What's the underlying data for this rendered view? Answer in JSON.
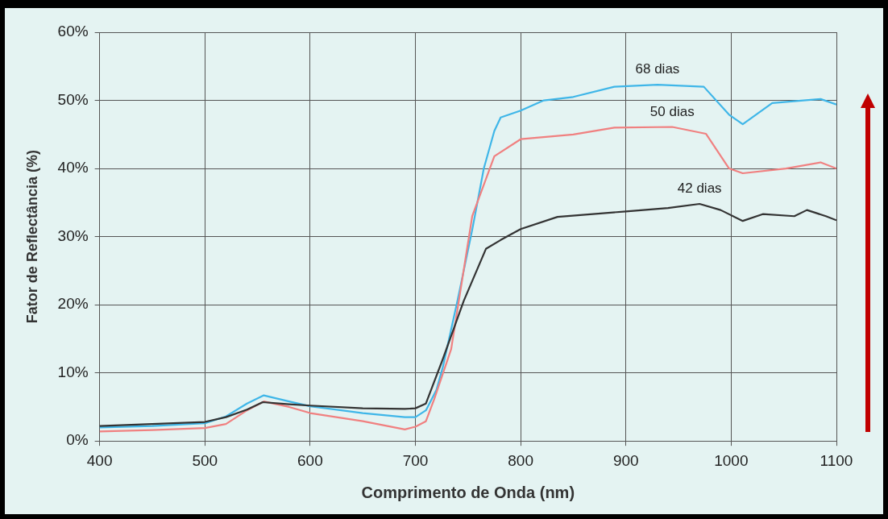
{
  "chart_data": {
    "type": "line",
    "xlabel": "Comprimento de Onda (nm)",
    "ylabel": "Fator de Reflectância (%)",
    "xlim": [
      400,
      1100
    ],
    "xticks": [
      400,
      500,
      600,
      700,
      800,
      900,
      1000,
      1100
    ],
    "ylim": [
      0,
      60
    ],
    "yticks": [
      {
        "value": 0,
        "label": "0%"
      },
      {
        "value": 10,
        "label": "10%"
      },
      {
        "value": 20,
        "label": "20%"
      },
      {
        "value": 30,
        "label": "30%"
      },
      {
        "value": 40,
        "label": "40%"
      },
      {
        "value": 50,
        "label": "50%"
      },
      {
        "value": 60,
        "label": "60%"
      }
    ],
    "grid": true,
    "legend": false,
    "marker": "none",
    "line_style": "solid",
    "series": [
      {
        "name": "68 dias",
        "color": "#3fb6e8",
        "x": [
          400,
          450,
          500,
          520,
          540,
          556,
          580,
          600,
          650,
          690,
          700,
          710,
          720,
          726,
          740,
          754,
          765,
          775,
          781,
          800,
          822,
          850,
          889,
          930,
          974,
          998,
          1011,
          1039,
          1085,
          1100
        ],
        "values": [
          2.0,
          2.2,
          2.6,
          3.6,
          5.5,
          6.7,
          5.8,
          5.1,
          4.1,
          3.5,
          3.5,
          4.5,
          7.5,
          10.8,
          20.6,
          31,
          40,
          45.5,
          47.5,
          48.5,
          50,
          50.5,
          52,
          52.3,
          52,
          47.9,
          46.5,
          49.6,
          50.2,
          49.4
        ]
      },
      {
        "name": "50 dias",
        "color": "#f08080",
        "x": [
          400,
          450,
          500,
          520,
          540,
          556,
          580,
          600,
          650,
          690,
          700,
          710,
          718,
          734,
          754,
          775,
          800,
          850,
          889,
          944,
          976,
          998,
          1011,
          1052,
          1085,
          1100
        ],
        "values": [
          1.4,
          1.6,
          1.9,
          2.5,
          4.5,
          5.8,
          5.0,
          4.1,
          2.9,
          1.7,
          2.1,
          2.9,
          6.2,
          13.5,
          33,
          41.8,
          44.3,
          45,
          46,
          46.1,
          45.1,
          40,
          39.3,
          40,
          40.9,
          40
        ]
      },
      {
        "name": "42 dias",
        "color": "#333333",
        "x": [
          400,
          450,
          500,
          520,
          540,
          555,
          580,
          600,
          650,
          690,
          700,
          710,
          726,
          746,
          767,
          781,
          800,
          835,
          900,
          940,
          970,
          990,
          1011,
          1030,
          1060,
          1072,
          1090,
          1100
        ],
        "values": [
          2.2,
          2.5,
          2.8,
          3.5,
          4.6,
          5.7,
          5.4,
          5.2,
          4.8,
          4.7,
          4.8,
          5.5,
          12,
          20.6,
          28.2,
          29.5,
          31.1,
          32.9,
          33.7,
          34.2,
          34.8,
          33.9,
          32.3,
          33.3,
          33.0,
          33.9,
          33.0,
          32.4
        ]
      }
    ]
  }
}
